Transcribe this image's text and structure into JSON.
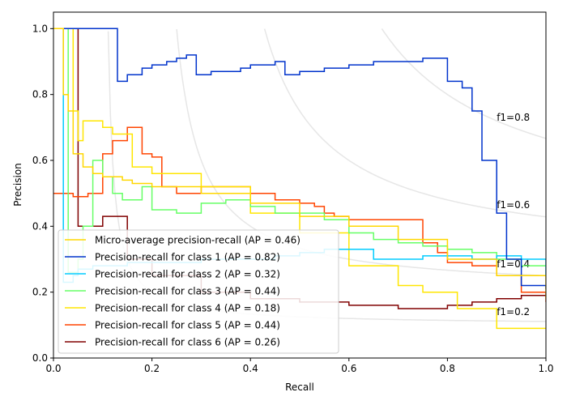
{
  "chart_data": {
    "type": "line",
    "title": "",
    "xlabel": "Recall",
    "ylabel": "Precision",
    "xlim": [
      0.0,
      1.0
    ],
    "ylim": [
      0.0,
      1.05
    ],
    "x_ticks": [
      0.0,
      0.2,
      0.4,
      0.6,
      0.8,
      1.0
    ],
    "x_tick_labels": [
      "0.0",
      "0.2",
      "0.4",
      "0.6",
      "0.8",
      "1.0"
    ],
    "y_ticks": [
      0.0,
      0.2,
      0.4,
      0.6,
      0.8,
      1.0
    ],
    "y_tick_labels": [
      "0.0",
      "0.2",
      "0.4",
      "0.6",
      "0.8",
      "1.0"
    ],
    "grid": false,
    "legend_position": "lower-left",
    "iso_f1": [
      {
        "f1": 0.2,
        "label": "f1=0.2",
        "label_at": [
          0.9,
          0.14
        ]
      },
      {
        "f1": 0.4,
        "label": "f1=0.4",
        "label_at": [
          0.9,
          0.285
        ]
      },
      {
        "f1": 0.6,
        "label": "f1=0.6",
        "label_at": [
          0.9,
          0.465
        ]
      },
      {
        "f1": 0.8,
        "label": "f1=0.8",
        "label_at": [
          0.9,
          0.73
        ]
      }
    ],
    "series": [
      {
        "name": "micro",
        "label": "Micro-average precision-recall (AP = 0.46)",
        "color": "#ffd700",
        "recall": [
          0.0,
          0.01,
          0.02,
          0.03,
          0.04,
          0.06,
          0.08,
          0.1,
          0.12,
          0.14,
          0.16,
          0.2,
          0.3,
          0.4,
          0.5,
          0.6,
          0.7,
          0.8,
          0.9,
          1.0
        ],
        "precision": [
          1.0,
          1.0,
          0.8,
          0.75,
          0.62,
          0.58,
          0.56,
          0.55,
          0.55,
          0.54,
          0.53,
          0.52,
          0.5,
          0.47,
          0.43,
          0.4,
          0.36,
          0.3,
          0.25,
          0.18
        ]
      },
      {
        "name": "class1",
        "label": "Precision-recall for class 1 (AP = 0.82)",
        "color": "#0033cc",
        "recall": [
          0.0,
          0.13,
          0.13,
          0.15,
          0.18,
          0.2,
          0.23,
          0.25,
          0.27,
          0.29,
          0.29,
          0.32,
          0.33,
          0.38,
          0.4,
          0.43,
          0.45,
          0.47,
          0.47,
          0.5,
          0.52,
          0.55,
          0.57,
          0.6,
          0.62,
          0.65,
          0.68,
          0.7,
          0.73,
          0.75,
          0.78,
          0.8,
          0.83,
          0.85,
          0.87,
          0.9,
          0.92,
          0.95,
          1.0
        ],
        "precision": [
          1.0,
          1.0,
          0.84,
          0.86,
          0.88,
          0.89,
          0.9,
          0.91,
          0.92,
          0.92,
          0.86,
          0.87,
          0.87,
          0.88,
          0.89,
          0.89,
          0.9,
          0.9,
          0.86,
          0.87,
          0.87,
          0.88,
          0.88,
          0.89,
          0.89,
          0.9,
          0.9,
          0.9,
          0.9,
          0.91,
          0.91,
          0.84,
          0.82,
          0.75,
          0.6,
          0.44,
          0.3,
          0.22,
          0.21
        ]
      },
      {
        "name": "class2",
        "label": "Precision-recall for class 2 (AP = 0.32)",
        "color": "#00ccff",
        "recall": [
          0.0,
          0.02,
          0.02,
          0.04,
          0.05,
          0.08,
          0.1,
          0.15,
          0.2,
          0.3,
          0.4,
          0.45,
          0.5,
          0.55,
          0.6,
          0.65,
          0.7,
          0.75,
          0.8,
          0.85,
          0.9,
          0.95,
          1.0
        ],
        "precision": [
          1.0,
          1.0,
          0.23,
          0.25,
          0.27,
          0.28,
          0.28,
          0.29,
          0.29,
          0.3,
          0.3,
          0.31,
          0.32,
          0.33,
          0.33,
          0.3,
          0.3,
          0.31,
          0.31,
          0.3,
          0.31,
          0.3,
          0.25
        ]
      },
      {
        "name": "class3",
        "label": "Precision-recall for class 3 (AP = 0.44)",
        "color": "#66ff66",
        "recall": [
          0.0,
          0.03,
          0.03,
          0.05,
          0.06,
          0.08,
          0.1,
          0.12,
          0.14,
          0.18,
          0.2,
          0.25,
          0.3,
          0.35,
          0.4,
          0.45,
          0.5,
          0.55,
          0.6,
          0.65,
          0.7,
          0.75,
          0.8,
          0.85,
          0.9,
          0.95,
          1.0
        ],
        "precision": [
          1.0,
          1.0,
          0.26,
          0.3,
          0.4,
          0.6,
          0.55,
          0.5,
          0.48,
          0.52,
          0.45,
          0.44,
          0.47,
          0.48,
          0.46,
          0.44,
          0.44,
          0.42,
          0.38,
          0.36,
          0.35,
          0.34,
          0.33,
          0.32,
          0.3,
          0.28,
          0.28
        ]
      },
      {
        "name": "class4",
        "label": "Precision-recall for class 4 (AP = 0.18)",
        "color": "#ffe600",
        "recall": [
          0.0,
          0.02,
          0.04,
          0.05,
          0.06,
          0.08,
          0.1,
          0.12,
          0.14,
          0.16,
          0.2,
          0.3,
          0.4,
          0.5,
          0.6,
          0.7,
          0.75,
          0.8,
          0.82,
          0.9,
          1.0
        ],
        "precision": [
          1.0,
          1.0,
          0.75,
          0.66,
          0.72,
          0.72,
          0.7,
          0.68,
          0.68,
          0.58,
          0.56,
          0.52,
          0.44,
          0.38,
          0.28,
          0.22,
          0.2,
          0.2,
          0.15,
          0.09,
          0.09
        ]
      },
      {
        "name": "class5",
        "label": "Precision-recall for class 5 (AP = 0.44)",
        "color": "#ff4400",
        "recall": [
          0.0,
          0.04,
          0.04,
          0.07,
          0.1,
          0.1,
          0.12,
          0.15,
          0.18,
          0.2,
          0.22,
          0.25,
          0.3,
          0.35,
          0.4,
          0.45,
          0.5,
          0.53,
          0.55,
          0.57,
          0.6,
          0.65,
          0.7,
          0.75,
          0.78,
          0.8,
          0.85,
          0.9,
          0.95,
          1.0
        ],
        "precision": [
          0.5,
          0.5,
          0.49,
          0.5,
          0.55,
          0.62,
          0.66,
          0.7,
          0.62,
          0.61,
          0.52,
          0.5,
          0.52,
          0.52,
          0.5,
          0.48,
          0.47,
          0.46,
          0.44,
          0.43,
          0.42,
          0.42,
          0.42,
          0.35,
          0.32,
          0.29,
          0.28,
          0.25,
          0.2,
          0.17
        ]
      },
      {
        "name": "class6",
        "label": "Precision-recall for class 6 (AP = 0.26)",
        "color": "#800000",
        "recall": [
          0.0,
          0.05,
          0.05,
          0.1,
          0.1,
          0.15,
          0.2,
          0.3,
          0.4,
          0.5,
          0.6,
          0.65,
          0.7,
          0.75,
          0.8,
          0.85,
          0.9,
          0.95,
          1.0
        ],
        "precision": [
          1.0,
          1.0,
          0.4,
          0.4,
          0.43,
          0.3,
          0.25,
          0.2,
          0.18,
          0.17,
          0.16,
          0.16,
          0.15,
          0.15,
          0.16,
          0.17,
          0.18,
          0.19,
          0.19
        ]
      }
    ]
  }
}
